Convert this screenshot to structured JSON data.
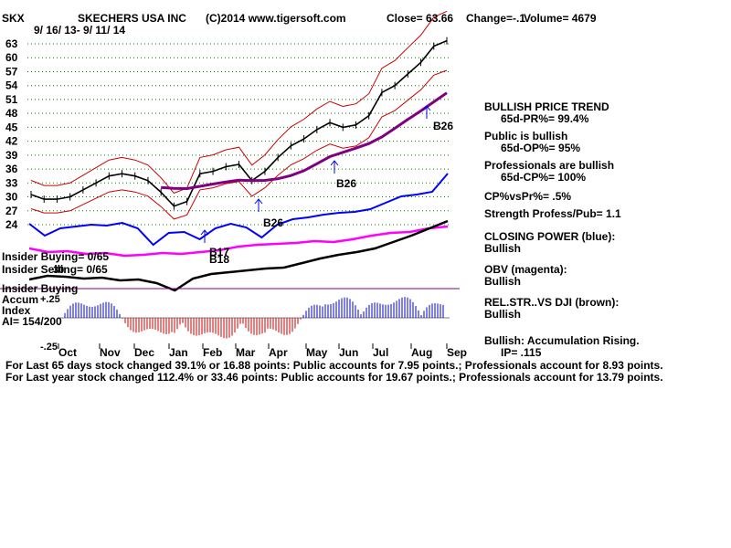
{
  "header": {
    "ticker": "SKX",
    "company": "SKECHERS USA INC",
    "source": "(C)2014 www.tigersoft.com",
    "close_text": "Close=  63.66",
    "change_text": "Change=-.1",
    "volume_text": "Volume=  4679",
    "date_range": "9/ 16/ 13- 9/ 11/ 14"
  },
  "left_labels": {
    "insider_buying": "Insider Buying= 0/65",
    "insider_selling": "Insider Selling= 0/65",
    "insider_buying2": "Insider Buying",
    "accum_line1": "Accum",
    "accum_line2": "Index",
    "ai": "AI= 154/200",
    "plus25": "+.25",
    "minus25": "-.25",
    "thirty_mark": "30"
  },
  "annotations": {
    "b26_a": "B26",
    "b26_b": "B26",
    "b26_c": "B26",
    "b17": "B17",
    "b18": "B18"
  },
  "side_panel": {
    "trend_title": "BULLISH PRICE TREND",
    "trend_value": "65d-PR%= 99.4%",
    "public_title": "Public is bullish",
    "public_value": "65d-OP%= 95%",
    "prof_title": "Professionals are bullish",
    "prof_value": "65d-CP%= 100%",
    "cpvspr": "CP%vsPr%=  .5%",
    "strength": "Strength Profess/Pub= 1.1",
    "closing_power_title": "CLOSING POWER (blue):",
    "closing_power_value": "Bullish",
    "obv_title": "OBV (magenta):",
    "obv_value": "Bullish",
    "relstr_title": "REL.STR..VS DJI (brown):",
    "relstr_value": "Bullish",
    "accum_title": "Bullish: Accumulation Rising.",
    "ip_value": "IP=  .115"
  },
  "footer": {
    "line1": "For Last 65 days stock changed  39.1% or  16.88 points:  Public accounts for  7.95 points.;  Professionals account for  8.93 points.",
    "line2": "For Last year stock changed  112.4% or  33.46 points:  Public accounts for  19.67 points.;  Professionals account for  13.79 points."
  },
  "colors": {
    "price": "#000000",
    "bands": "#cc0000",
    "ma": "#800080",
    "closing_power": "#0000ff",
    "obv": "#ff00ff",
    "relstr": "#000000",
    "accum_positive": "#0000cc",
    "accum_negative": "#cc0000",
    "grid": "#008000",
    "horizontal": "#800080"
  },
  "chart_data": {
    "type": "line",
    "y_ticks": [
      "63",
      "60",
      "57",
      "54",
      "51",
      "48",
      "45",
      "42",
      "39",
      "36",
      "33",
      "30",
      "27",
      "24"
    ],
    "x_ticks": [
      "Oct",
      "Nov",
      "Dec",
      "Jan",
      "Feb",
      "Mar",
      "Apr",
      "May",
      "Jun",
      "Jul",
      "Aug",
      "Sep"
    ],
    "ylim": [
      24,
      63
    ],
    "grid": true,
    "series": [
      {
        "values": [
          30.5,
          29.5,
          29.5,
          30,
          31.5,
          33,
          34.5,
          35,
          34.5,
          33.5,
          31,
          28,
          29,
          35,
          35.5,
          36.5,
          37,
          33.5,
          35.5,
          38.5,
          41,
          42.5,
          44.5,
          46,
          45,
          45.5,
          47.5,
          52.5,
          54,
          56.5,
          59,
          62.5,
          63.66
        ]
      }
    ],
    "accumulation_index_range": [
      -0.25,
      0.25
    ]
  }
}
